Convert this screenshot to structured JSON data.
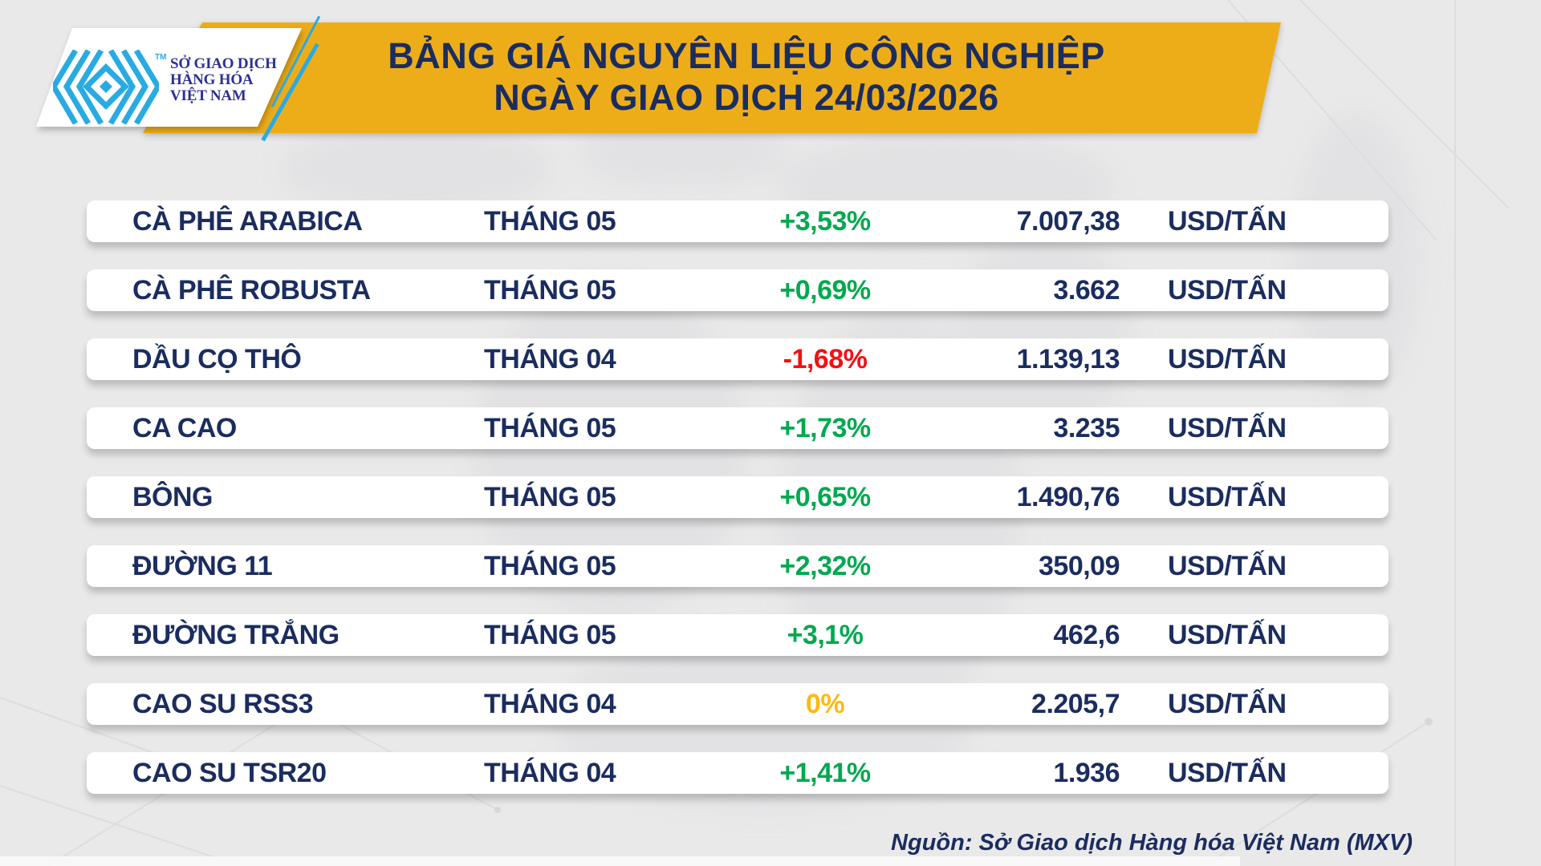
{
  "header": {
    "logo": {
      "org_lines": [
        "SỞ GIAO DỊCH",
        "HÀNG HÓA",
        "VIỆT NAM"
      ],
      "trademark": "TM",
      "glyph": "mxv-chevron-diamond"
    },
    "title_line1": "BẢNG GIÁ NGUYÊN LIỆU CÔNG NGHIỆP",
    "title_line2": "NGÀY GIAO DỊCH 24/03/2026"
  },
  "table": {
    "unit": "USD/TẤN",
    "rows": [
      {
        "name": "CÀ PHÊ ARABICA",
        "month": "THÁNG 05",
        "change": "+3,53%",
        "direction": "up",
        "price": "7.007,38"
      },
      {
        "name": "CÀ PHÊ ROBUSTA",
        "month": "THÁNG 05",
        "change": "+0,69%",
        "direction": "up",
        "price": "3.662"
      },
      {
        "name": "DẦU CỌ THÔ",
        "month": "THÁNG 04",
        "change": "-1,68%",
        "direction": "down",
        "price": "1.139,13"
      },
      {
        "name": "CA CAO",
        "month": "THÁNG 05",
        "change": "+1,73%",
        "direction": "up",
        "price": "3.235"
      },
      {
        "name": "BÔNG",
        "month": "THÁNG 05",
        "change": "+0,65%",
        "direction": "up",
        "price": "1.490,76"
      },
      {
        "name": "ĐƯỜNG 11",
        "month": "THÁNG 05",
        "change": "+2,32%",
        "direction": "up",
        "price": "350,09"
      },
      {
        "name": "ĐƯỜNG TRẮNG",
        "month": "THÁNG 05",
        "change": "+3,1%",
        "direction": "up",
        "price": "462,6"
      },
      {
        "name": "CAO SU RSS3",
        "month": "THÁNG 04",
        "change": "0%",
        "direction": "flat",
        "price": "2.205,7"
      },
      {
        "name": "CAO SU TSR20",
        "month": "THÁNG 04",
        "change": "+1,41%",
        "direction": "up",
        "price": "1.936"
      }
    ]
  },
  "footer": {
    "source": "Nguồn: Sở Giao dịch Hàng hóa Việt Nam (MXV)"
  },
  "colors": {
    "banner_yellow": "#edad19",
    "navy": "#1b2d5f",
    "up": "#00a94f",
    "down": "#f50f14",
    "flat": "#fdb913",
    "cyan": "#29abe2",
    "logo_text": "#2e3192"
  }
}
